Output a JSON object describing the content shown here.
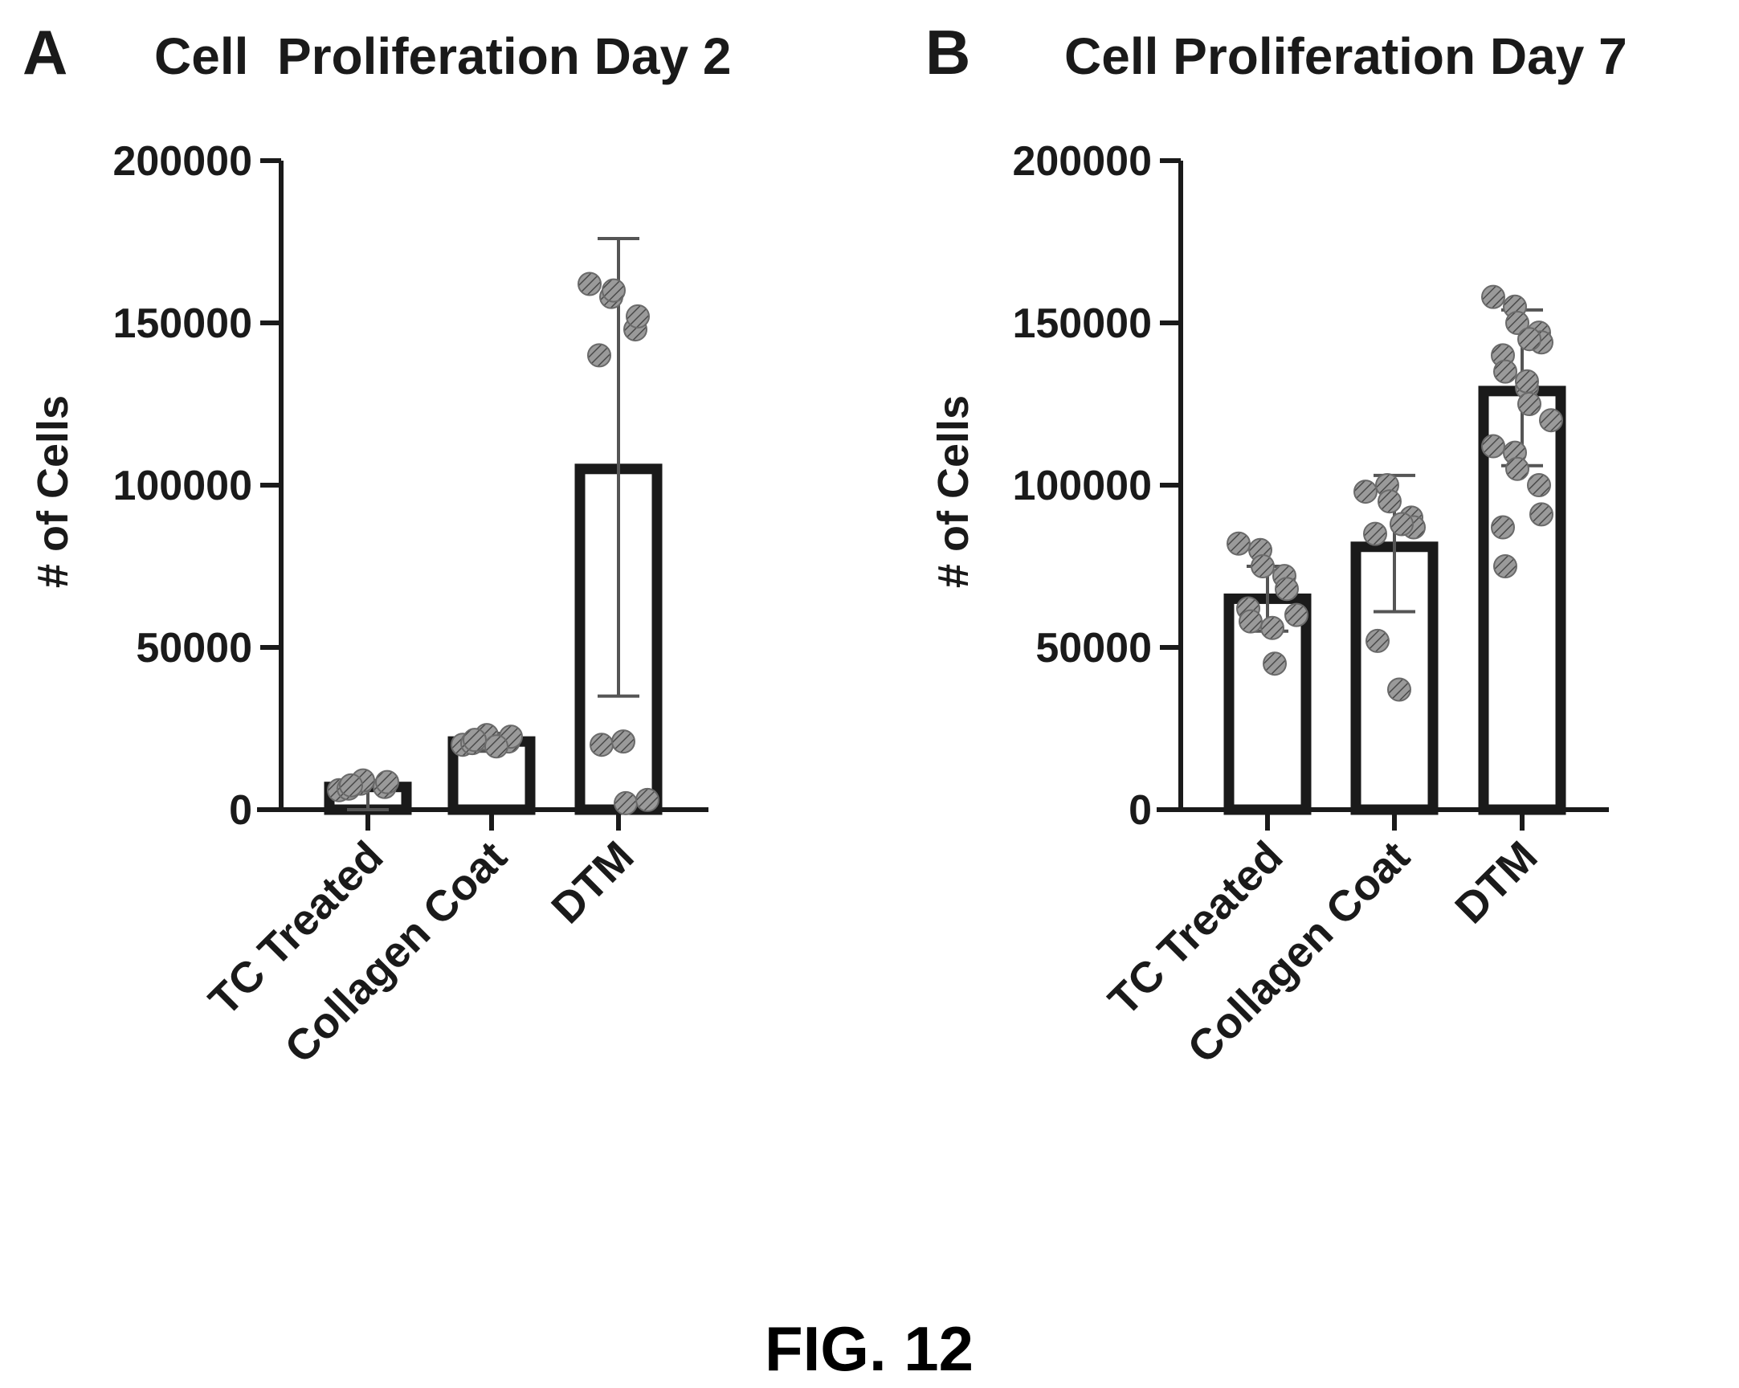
{
  "figure_caption": "FIG. 12",
  "colors": {
    "axis": "#1a1a1a",
    "bar_fill": "#ffffff",
    "points": "#8a8a8a",
    "error_bar": "#555555"
  },
  "chart_data": [
    {
      "panel": "A",
      "type": "bar",
      "title": "Cell  Proliferation Day 2",
      "ylabel": "# of Cells",
      "xlabel": "",
      "ylim": [
        0,
        200000
      ],
      "yticks": [
        0,
        50000,
        100000,
        150000,
        200000
      ],
      "ytick_labels": [
        "0",
        "50000",
        "100000",
        "150000",
        "200000"
      ],
      "categories": [
        "TC Treated",
        "Collagen Coat",
        "DTM"
      ],
      "values": [
        7000,
        21000,
        105000
      ],
      "error": [
        {
          "low": 0,
          "high": 9000
        },
        {
          "low": 18000,
          "high": 23500
        },
        {
          "low": 35000,
          "high": 176000
        }
      ],
      "points": [
        [
          6000,
          8000,
          9000,
          7000,
          8500,
          6500,
          7500
        ],
        [
          20000,
          22000,
          23000,
          21000,
          22500,
          20500,
          21500,
          19500
        ],
        [
          162000,
          158000,
          160000,
          148000,
          152000,
          140000,
          20000,
          21000,
          2000,
          3000
        ]
      ],
      "grid": false,
      "legend": "none"
    },
    {
      "panel": "B",
      "type": "bar",
      "title": "Cell Proliferation Day 7",
      "ylabel": "# of Cells",
      "xlabel": "",
      "ylim": [
        0,
        200000
      ],
      "yticks": [
        0,
        50000,
        100000,
        150000,
        200000
      ],
      "ytick_labels": [
        "0",
        "50000",
        "100000",
        "150000",
        "200000"
      ],
      "categories": [
        "TC Treated",
        "Collagen Coat",
        "DTM"
      ],
      "values": [
        65000,
        81000,
        129000
      ],
      "error": [
        {
          "low": 55000,
          "high": 75000
        },
        {
          "low": 61000,
          "high": 103000
        },
        {
          "low": 106000,
          "high": 154000
        }
      ],
      "points": [
        [
          82000,
          80000,
          75000,
          72000,
          68000,
          62000,
          58000,
          56000,
          45000,
          60000
        ],
        [
          98000,
          100000,
          95000,
          90000,
          87000,
          85000,
          52000,
          37000,
          88000
        ],
        [
          158000,
          155000,
          150000,
          147000,
          144000,
          140000,
          135000,
          130000,
          125000,
          120000,
          112000,
          110000,
          105000,
          100000,
          91000,
          87000,
          75000,
          132000,
          145000
        ]
      ],
      "grid": false,
      "legend": "none"
    }
  ]
}
